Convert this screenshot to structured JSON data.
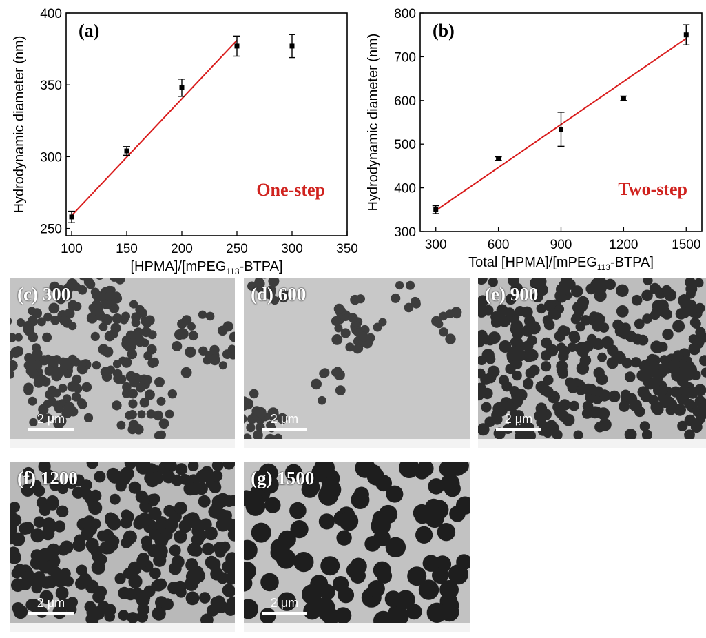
{
  "chart_data": [
    {
      "type": "scatter",
      "panel_label": "(a)",
      "xlabel_main": "[HPMA]/[mPEG",
      "xlabel_sub": "113",
      "xlabel_tail": "-BTPA]",
      "ylabel": "Hydrodynamic diameter (nm)",
      "xlim": [
        95,
        350
      ],
      "ylim": [
        245,
        400
      ],
      "xticks": [
        100,
        150,
        200,
        250,
        300,
        350
      ],
      "yticks": [
        250,
        300,
        350,
        400
      ],
      "annotation": "One-step",
      "series": [
        {
          "name": "data",
          "x": [
            100,
            150,
            200,
            250,
            300
          ],
          "y": [
            258,
            304,
            348,
            377,
            377
          ],
          "err": [
            4,
            3,
            6,
            7,
            8
          ]
        }
      ],
      "fit_line": {
        "x": [
          100,
          250
        ],
        "y": [
          259,
          381
        ]
      }
    },
    {
      "type": "scatter",
      "panel_label": "(b)",
      "xlabel_main": "Total [HPMA]/[mPEG",
      "xlabel_sub": "113",
      "xlabel_tail": "-BTPA]",
      "ylabel": "Hydrodynamic diameter (nm)",
      "xlim": [
        225,
        1575
      ],
      "ylim": [
        300,
        800
      ],
      "xticks": [
        300,
        600,
        900,
        1200,
        1500
      ],
      "yticks": [
        300,
        400,
        500,
        600,
        700,
        800
      ],
      "annotation": "Two-step",
      "series": [
        {
          "name": "data",
          "x": [
            300,
            600,
            900,
            1200,
            1500
          ],
          "y": [
            350,
            467,
            534,
            605,
            750
          ],
          "err": [
            9,
            4,
            39,
            5,
            23
          ]
        }
      ],
      "fit_line": {
        "x": [
          300,
          1500
        ],
        "y": [
          348,
          742
        ]
      }
    }
  ],
  "tem_panels": [
    {
      "label": "(c) 300",
      "scale": "2 μm"
    },
    {
      "label": "(d) 600",
      "scale": "2 μm"
    },
    {
      "label": "(e) 900",
      "scale": "2 μm"
    },
    {
      "label": "(f) 1200",
      "scale": "2 μm"
    },
    {
      "label": "(g) 1500",
      "scale": "2 μm"
    }
  ],
  "colors": {
    "fit": "#d91c1c",
    "annotation": "#d0231f",
    "marker": "#000000"
  }
}
